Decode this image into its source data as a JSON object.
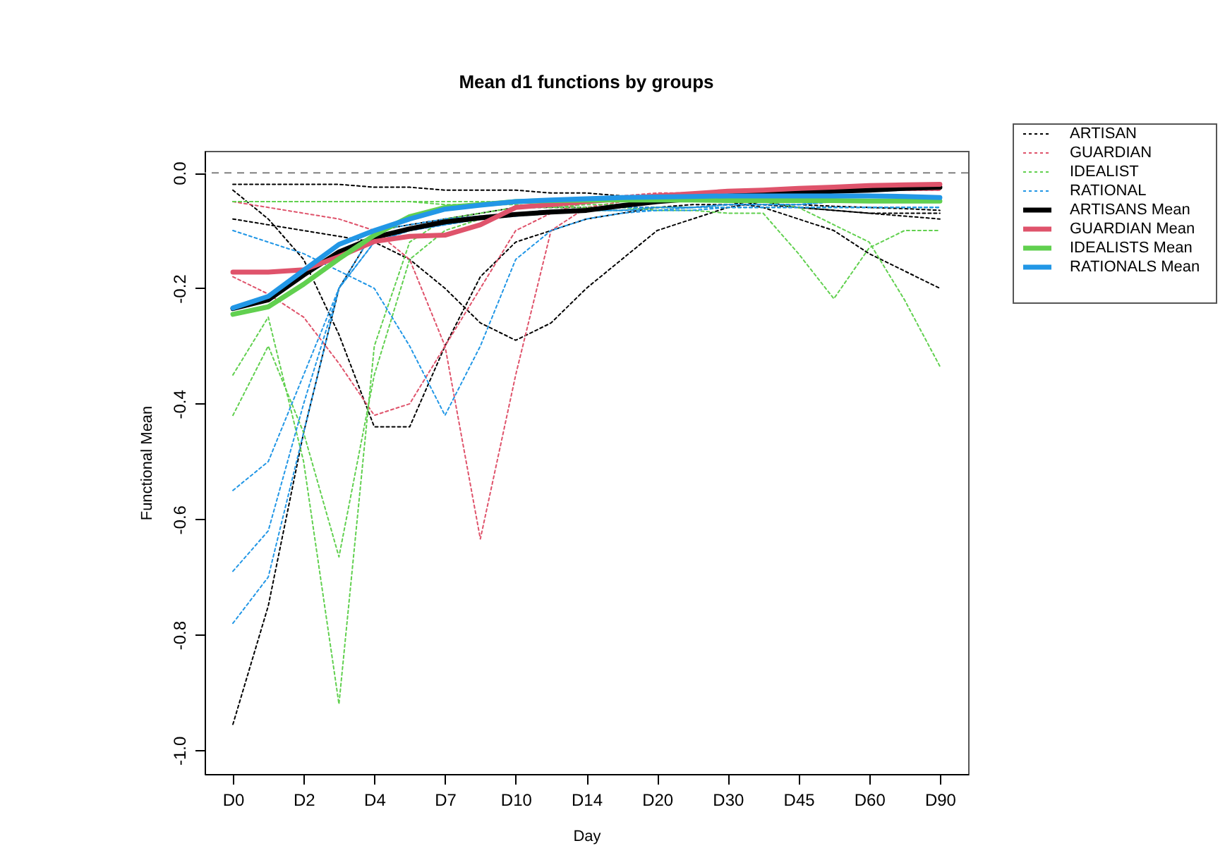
{
  "chart_data": {
    "type": "line",
    "title": "Mean d1 functions by groups",
    "xlabel": "Day",
    "ylabel": "Functional Mean",
    "categories": [
      "D0",
      null,
      "D2",
      null,
      "D4",
      null,
      "D7",
      null,
      "D10",
      null,
      "D14",
      null,
      "D20",
      null,
      "D30",
      null,
      "D45",
      null,
      "D60",
      null,
      "D90"
    ],
    "ylim": [
      -1.041,
      0.038
    ],
    "yticks": [
      {
        "value": -1.0,
        "label": "-1.0"
      },
      {
        "value": -0.8,
        "label": "-0.8"
      },
      {
        "value": -0.6,
        "label": "-0.6"
      },
      {
        "value": -0.4,
        "label": "-0.4"
      },
      {
        "value": -0.2,
        "label": "-0.2"
      },
      {
        "value": 0.0,
        "label": "0.0"
      }
    ],
    "grid": false,
    "legend": "top right",
    "marker": "none",
    "ref_lines": [
      {
        "axis": "y",
        "value": 0,
        "color": "#808080",
        "line_style": "dashed"
      }
    ],
    "series": [
      {
        "name": "ARTISAN",
        "color": "#000000",
        "line_style": "dotted",
        "values": [
          -0.955,
          -0.75,
          -0.45,
          -0.2,
          -0.1,
          -0.09,
          -0.08,
          -0.07,
          -0.06,
          -0.06,
          -0.06,
          -0.06,
          -0.06,
          -0.055,
          -0.055,
          -0.055,
          -0.055,
          -0.058,
          -0.06,
          -0.062,
          -0.065
        ]
      },
      {
        "color": "#000000",
        "line_style": "dotted",
        "values": [
          -0.03,
          -0.08,
          -0.15,
          -0.28,
          -0.44,
          -0.44,
          -0.3,
          -0.18,
          -0.12,
          -0.1,
          -0.08,
          -0.07,
          -0.06,
          -0.06,
          -0.055,
          -0.055,
          -0.06,
          -0.065,
          -0.07,
          -0.075,
          -0.08
        ]
      },
      {
        "color": "#000000",
        "line_style": "dotted",
        "values": [
          -0.08,
          -0.09,
          -0.1,
          -0.11,
          -0.12,
          -0.15,
          -0.2,
          -0.26,
          -0.29,
          -0.26,
          -0.2,
          -0.15,
          -0.1,
          -0.08,
          -0.06,
          -0.05,
          -0.06,
          -0.065,
          -0.07,
          -0.07,
          -0.07
        ]
      },
      {
        "color": "#000000",
        "line_style": "dotted",
        "values": [
          -0.02,
          -0.02,
          -0.02,
          -0.02,
          -0.025,
          -0.025,
          -0.03,
          -0.03,
          -0.03,
          -0.035,
          -0.035,
          -0.04,
          -0.04,
          -0.045,
          -0.05,
          -0.06,
          -0.08,
          -0.1,
          -0.14,
          -0.17,
          -0.2
        ]
      },
      {
        "name": "GUARDIAN",
        "color": "#df536b",
        "line_style": "dotted",
        "values": [
          -0.05,
          -0.06,
          -0.07,
          -0.08,
          -0.1,
          -0.15,
          -0.3,
          -0.634,
          -0.35,
          -0.1,
          -0.06,
          -0.05,
          -0.04,
          -0.04,
          -0.035,
          -0.035,
          -0.03,
          -0.03,
          -0.03,
          -0.03,
          -0.03
        ]
      },
      {
        "color": "#df536b",
        "line_style": "dotted",
        "values": [
          -0.18,
          -0.21,
          -0.25,
          -0.33,
          -0.42,
          -0.4,
          -0.3,
          -0.2,
          -0.1,
          -0.07,
          -0.05,
          -0.04,
          -0.035,
          -0.035,
          -0.03,
          -0.03,
          -0.03,
          -0.03,
          -0.03,
          -0.03,
          -0.03
        ]
      },
      {
        "name": "IDEALIST",
        "color": "#61d04f",
        "line_style": "dotted",
        "values": [
          -0.35,
          -0.25,
          -0.5,
          -0.92,
          -0.3,
          -0.12,
          -0.08,
          -0.07,
          -0.06,
          -0.06,
          -0.055,
          -0.055,
          -0.05,
          -0.05,
          -0.05,
          -0.05,
          -0.05,
          -0.05,
          -0.05,
          -0.05,
          -0.05
        ]
      },
      {
        "color": "#61d04f",
        "line_style": "dotted",
        "values": [
          -0.42,
          -0.3,
          -0.45,
          -0.665,
          -0.35,
          -0.15,
          -0.1,
          -0.08,
          -0.07,
          -0.07,
          -0.065,
          -0.065,
          -0.06,
          -0.06,
          -0.06,
          -0.06,
          -0.06,
          -0.06,
          -0.06,
          -0.06,
          -0.06
        ]
      },
      {
        "color": "#61d04f",
        "line_style": "dotted",
        "values": [
          -0.05,
          -0.05,
          -0.05,
          -0.05,
          -0.05,
          -0.05,
          -0.05,
          -0.05,
          -0.05,
          -0.05,
          -0.05,
          -0.05,
          -0.05,
          -0.05,
          -0.05,
          -0.05,
          -0.06,
          -0.09,
          -0.12,
          -0.22,
          -0.335
        ]
      },
      {
        "color": "#61d04f",
        "line_style": "dotted",
        "values": [
          -0.05,
          -0.05,
          -0.05,
          -0.05,
          -0.05,
          -0.05,
          -0.055,
          -0.055,
          -0.055,
          -0.06,
          -0.06,
          -0.06,
          -0.065,
          -0.065,
          -0.07,
          -0.07,
          -0.14,
          -0.218,
          -0.13,
          -0.1,
          -0.1
        ]
      },
      {
        "name": "RATIONAL",
        "color": "#2297e6",
        "line_style": "dotted",
        "values": [
          -0.78,
          -0.7,
          -0.45,
          -0.2,
          -0.12,
          -0.1,
          -0.09,
          -0.08,
          -0.07,
          -0.065,
          -0.065,
          -0.06,
          -0.06,
          -0.06,
          -0.055,
          -0.055,
          -0.055,
          -0.05,
          -0.05,
          -0.05,
          -0.05
        ]
      },
      {
        "color": "#2297e6",
        "line_style": "dotted",
        "values": [
          -0.55,
          -0.5,
          -0.35,
          -0.2,
          -0.12,
          -0.1,
          -0.09,
          -0.08,
          -0.075,
          -0.07,
          -0.065,
          -0.065,
          -0.06,
          -0.06,
          -0.055,
          -0.055,
          -0.055,
          -0.05,
          -0.05,
          -0.05,
          -0.05
        ]
      },
      {
        "color": "#2297e6",
        "line_style": "dotted",
        "values": [
          -0.69,
          -0.62,
          -0.4,
          -0.2,
          -0.1,
          -0.09,
          -0.08,
          -0.075,
          -0.07,
          -0.07,
          -0.065,
          -0.065,
          -0.065,
          -0.06,
          -0.06,
          -0.06,
          -0.06,
          -0.06,
          -0.06,
          -0.06,
          -0.06
        ]
      },
      {
        "color": "#2297e6",
        "line_style": "dotted",
        "values": [
          -0.1,
          -0.12,
          -0.14,
          -0.17,
          -0.2,
          -0.3,
          -0.42,
          -0.3,
          -0.15,
          -0.1,
          -0.08,
          -0.07,
          -0.065,
          -0.065,
          -0.06,
          -0.06,
          -0.06,
          -0.06,
          -0.06,
          -0.06,
          -0.06
        ]
      },
      {
        "name": "ARTISANS Mean",
        "color": "#000000",
        "line_style": "solid",
        "values": [
          -0.235,
          -0.22,
          -0.177,
          -0.137,
          -0.112,
          -0.097,
          -0.085,
          -0.078,
          -0.072,
          -0.068,
          -0.065,
          -0.057,
          -0.05,
          -0.045,
          -0.04,
          -0.037,
          -0.035,
          -0.032,
          -0.03,
          -0.027,
          -0.025
        ]
      },
      {
        "name": "GUARDIAN Mean",
        "color": "#df536b",
        "line_style": "solid",
        "values": [
          -0.172,
          -0.172,
          -0.168,
          -0.145,
          -0.119,
          -0.11,
          -0.108,
          -0.09,
          -0.06,
          -0.055,
          -0.05,
          -0.045,
          -0.04,
          -0.036,
          -0.032,
          -0.03,
          -0.027,
          -0.025,
          -0.022,
          -0.021,
          -0.02
        ]
      },
      {
        "name": "IDEALISTS Mean",
        "color": "#61d04f",
        "line_style": "solid",
        "values": [
          -0.245,
          -0.232,
          -0.193,
          -0.149,
          -0.108,
          -0.076,
          -0.06,
          -0.055,
          -0.05,
          -0.048,
          -0.047,
          -0.047,
          -0.047,
          -0.047,
          -0.048,
          -0.048,
          -0.048,
          -0.048,
          -0.049,
          -0.049,
          -0.049
        ]
      },
      {
        "name": "RATIONALS Mean",
        "color": "#2297e6",
        "line_style": "solid",
        "values": [
          -0.234,
          -0.214,
          -0.169,
          -0.124,
          -0.1,
          -0.08,
          -0.063,
          -0.056,
          -0.05,
          -0.047,
          -0.045,
          -0.043,
          -0.042,
          -0.041,
          -0.04,
          -0.04,
          -0.04,
          -0.04,
          -0.04,
          -0.041,
          -0.043
        ]
      }
    ]
  }
}
